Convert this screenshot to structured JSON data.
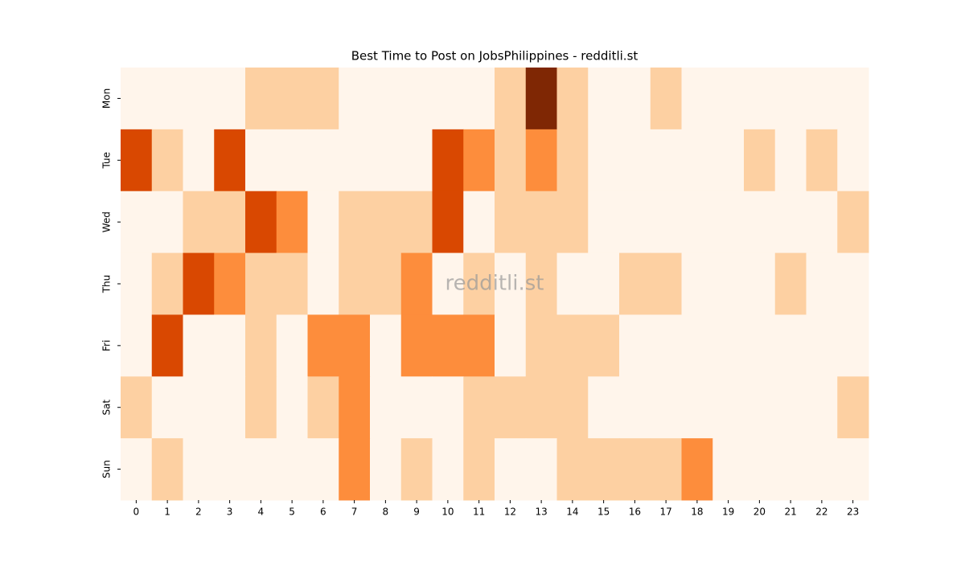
{
  "chart_data": {
    "type": "heatmap",
    "title": "Best Time to Post on JobsPhilippines - redditli.st",
    "watermark": "redditli.st",
    "x": [
      "0",
      "1",
      "2",
      "3",
      "4",
      "5",
      "6",
      "7",
      "8",
      "9",
      "10",
      "11",
      "12",
      "13",
      "14",
      "15",
      "16",
      "17",
      "18",
      "19",
      "20",
      "21",
      "22",
      "23"
    ],
    "y": [
      "Mon",
      "Tue",
      "Wed",
      "Thu",
      "Fri",
      "Sat",
      "Sun"
    ],
    "values": [
      [
        0,
        0,
        0,
        0,
        1,
        1,
        1,
        0,
        0,
        0,
        0,
        0,
        1,
        4,
        1,
        0,
        0,
        1,
        0,
        0,
        0,
        0,
        0,
        0
      ],
      [
        3,
        1,
        0,
        3,
        0,
        0,
        0,
        0,
        0,
        0,
        3,
        2,
        1,
        2,
        1,
        0,
        0,
        0,
        0,
        0,
        1,
        0,
        1,
        0
      ],
      [
        0,
        0,
        1,
        1,
        3,
        2,
        0,
        1,
        1,
        1,
        3,
        0,
        1,
        1,
        1,
        0,
        0,
        0,
        0,
        0,
        0,
        0,
        0,
        1
      ],
      [
        0,
        1,
        3,
        2,
        1,
        1,
        0,
        1,
        1,
        2,
        0,
        1,
        0,
        1,
        0,
        0,
        1,
        1,
        0,
        0,
        0,
        1,
        0,
        0
      ],
      [
        0,
        3,
        0,
        0,
        1,
        0,
        2,
        2,
        0,
        2,
        2,
        2,
        0,
        1,
        1,
        1,
        0,
        0,
        0,
        0,
        0,
        0,
        0,
        0
      ],
      [
        1,
        0,
        0,
        0,
        1,
        0,
        1,
        2,
        0,
        0,
        0,
        1,
        1,
        1,
        1,
        0,
        0,
        0,
        0,
        0,
        0,
        0,
        0,
        1
      ],
      [
        0,
        1,
        0,
        0,
        0,
        0,
        0,
        2,
        0,
        1,
        0,
        1,
        0,
        0,
        1,
        1,
        1,
        1,
        2,
        0,
        0,
        0,
        0,
        0
      ]
    ],
    "colors": [
      "#fff5eb",
      "#fdd0a2",
      "#fd8d3c",
      "#d94801",
      "#7f2704"
    ],
    "vlim": [
      0,
      4
    ]
  }
}
